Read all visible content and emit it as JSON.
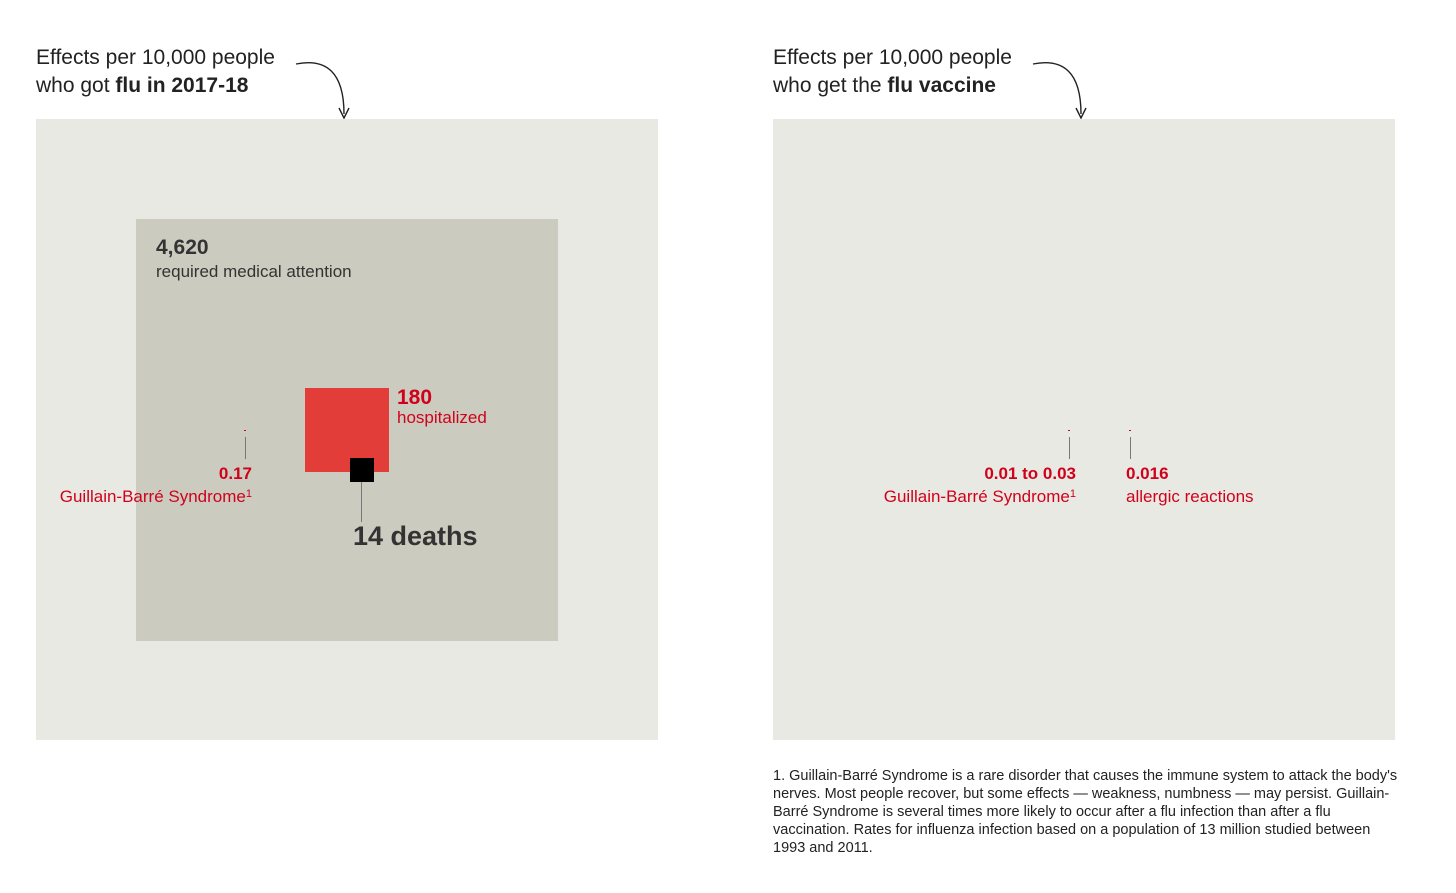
{
  "chart_data": [
    {
      "type": "proportional-area",
      "title_prefix": "Effects per 10,000 people",
      "title_line2_plain": "who got ",
      "title_line2_bold": "flu in 2017-18",
      "base": 10000,
      "values": [
        {
          "name": "required medical attention",
          "value": 4620,
          "label": "4,620"
        },
        {
          "name": "hospitalized",
          "value": 180,
          "label": "180"
        },
        {
          "name": "deaths",
          "value": 14,
          "label": "14 deaths"
        },
        {
          "name": "Guillain-Barré Syndrome",
          "value": 0.17,
          "label": "0.17",
          "note": "1"
        }
      ]
    },
    {
      "type": "proportional-area",
      "title_prefix": "Effects per 10,000 people",
      "title_line2_plain": "who get the ",
      "title_line2_bold": "flu vaccine",
      "base": 10000,
      "values": [
        {
          "name": "Guillain-Barré Syndrome",
          "value_range": [
            0.01,
            0.03
          ],
          "label": "0.01 to 0.03",
          "note": "1"
        },
        {
          "name": "allergic reactions",
          "value": 0.016,
          "label": "0.016"
        }
      ]
    }
  ],
  "colors": {
    "outer": "#e9e9e4",
    "medical": "#cbcbbf",
    "hospitalized": "#e33d3a",
    "deaths": "#000000",
    "accent_red": "#d0021b"
  },
  "footnote": "1. Guillain-Barré Syndrome is a rare disorder that causes the immune system to attack the body's nerves. Most people recover, but some effects — weakness, numbness — may persist. Guillain-Barré Syndrome is several times more likely to occur after a flu infection than after a flu vaccination. Rates for influenza infection based on a population of 13 million studied between 1993 and 2011."
}
